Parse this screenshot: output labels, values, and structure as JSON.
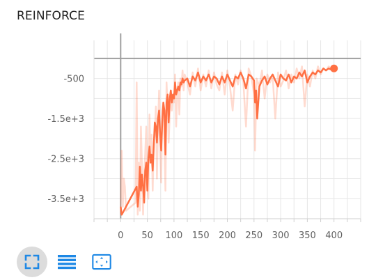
{
  "chart_data": {
    "type": "line",
    "title": "REINFORCE",
    "xlabel": "",
    "ylabel": "",
    "xlim": [
      -50,
      450
    ],
    "ylim": [
      -4000,
      450
    ],
    "x_ticks": [
      0,
      50,
      100,
      150,
      200,
      250,
      300,
      350,
      400
    ],
    "x_tick_labels": [
      "0",
      "50",
      "100",
      "150",
      "200",
      "250",
      "300",
      "350",
      "400"
    ],
    "y_ticks": [
      -500,
      -1500,
      -2500,
      -3500
    ],
    "y_tick_labels": [
      "-500",
      "-1.5e+3",
      "-2.5e+3",
      "-3.5e+3"
    ],
    "reference_lines": {
      "x": 0,
      "y": 0
    },
    "grid": true,
    "colors": {
      "smoothed": "#ff7043",
      "raw": "#ff7043",
      "raw_opacity": 0.25,
      "grid": "#e6e6e6",
      "axis": "#9e9e9e"
    },
    "series": [
      {
        "style": "raw",
        "x": [
          0,
          2,
          4,
          6,
          8,
          10,
          28,
          30,
          32,
          34,
          36,
          38,
          40,
          42,
          44,
          46,
          48,
          50,
          52,
          54,
          56,
          58,
          60,
          62,
          64,
          66,
          68,
          70,
          72,
          74,
          76,
          78,
          80,
          82,
          84,
          86,
          88,
          90,
          92,
          94,
          96,
          98,
          100,
          102,
          104,
          106,
          108,
          110,
          112,
          114,
          116,
          118,
          120,
          125,
          130,
          135,
          140,
          145,
          150,
          155,
          160,
          165,
          170,
          175,
          180,
          185,
          190,
          195,
          200,
          205,
          210,
          215,
          220,
          225,
          230,
          235,
          240,
          245,
          250,
          252,
          255,
          260,
          265,
          270,
          275,
          280,
          285,
          290,
          295,
          300,
          305,
          310,
          315,
          320,
          325,
          330,
          335,
          340,
          345,
          350,
          355,
          360,
          365,
          370,
          375,
          380,
          385,
          390,
          395,
          400
        ],
        "y": [
          -3900,
          -2300,
          -3700,
          -3000,
          -3200,
          -3800,
          -3600,
          -600,
          -3900,
          -2600,
          -3800,
          -1700,
          -2700,
          -3900,
          -2900,
          -2400,
          -1700,
          -3200,
          -3500,
          -1400,
          -2600,
          -1900,
          -3300,
          -2100,
          -1900,
          -1200,
          -3000,
          -1700,
          -800,
          -2200,
          -3100,
          -1300,
          -1100,
          -2000,
          -3300,
          -600,
          -1200,
          -2100,
          -1400,
          -800,
          -1300,
          -1000,
          -1100,
          -400,
          -1700,
          -900,
          -600,
          -1400,
          -500,
          -700,
          -300,
          -800,
          -400,
          -600,
          -900,
          -350,
          -700,
          -250,
          -800,
          -400,
          -700,
          -300,
          -750,
          -350,
          -650,
          -800,
          -350,
          -900,
          -300,
          -700,
          -1300,
          -400,
          -650,
          -300,
          -600,
          -1700,
          -250,
          -450,
          -900,
          -2300,
          -500,
          -700,
          -300,
          -1000,
          -400,
          -600,
          -450,
          -1500,
          -350,
          -700,
          -550,
          -300,
          -750,
          -400,
          -600,
          -250,
          -500,
          -200,
          -1200,
          -400,
          -700,
          -300,
          -500,
          -200,
          -400,
          -250,
          -300,
          -200,
          -250,
          -250
        ]
      },
      {
        "style": "smoothed",
        "x": [
          0,
          2,
          4,
          30,
          32,
          34,
          36,
          38,
          40,
          42,
          44,
          46,
          48,
          50,
          52,
          54,
          56,
          58,
          60,
          62,
          64,
          66,
          68,
          70,
          72,
          74,
          76,
          78,
          80,
          82,
          84,
          86,
          88,
          90,
          92,
          94,
          96,
          98,
          100,
          102,
          104,
          106,
          108,
          110,
          112,
          114,
          116,
          118,
          120,
          125,
          130,
          135,
          140,
          145,
          150,
          155,
          160,
          165,
          170,
          175,
          180,
          185,
          190,
          195,
          200,
          205,
          210,
          215,
          220,
          225,
          230,
          235,
          240,
          245,
          250,
          252,
          254,
          256,
          260,
          265,
          270,
          275,
          280,
          285,
          290,
          295,
          300,
          305,
          310,
          315,
          320,
          325,
          330,
          335,
          340,
          345,
          350,
          355,
          360,
          365,
          370,
          375,
          380,
          385,
          390,
          395,
          400
        ],
        "y": [
          -3700,
          -3900,
          -3850,
          -3200,
          -3700,
          -3400,
          -2700,
          -3300,
          -2900,
          -3200,
          -3600,
          -2800,
          -2600,
          -3300,
          -2500,
          -2200,
          -2600,
          -2400,
          -2800,
          -2200,
          -1600,
          -1700,
          -2100,
          -1500,
          -1300,
          -1900,
          -2300,
          -1600,
          -1100,
          -1300,
          -2400,
          -1100,
          -900,
          -1600,
          -1000,
          -800,
          -1100,
          -900,
          -1000,
          -600,
          -900,
          -800,
          -700,
          -800,
          -600,
          -650,
          -500,
          -600,
          -550,
          -500,
          -700,
          -450,
          -550,
          -350,
          -600,
          -450,
          -550,
          -400,
          -600,
          -450,
          -500,
          -650,
          -450,
          -600,
          -400,
          -550,
          -700,
          -450,
          -500,
          -350,
          -500,
          -750,
          -400,
          -450,
          -550,
          -1100,
          -800,
          -1500,
          -700,
          -550,
          -450,
          -650,
          -500,
          -400,
          -550,
          -700,
          -400,
          -500,
          -550,
          -400,
          -600,
          -450,
          -500,
          -350,
          -450,
          -300,
          -600,
          -450,
          -350,
          -400,
          -300,
          -350,
          -250,
          -300,
          -250,
          -280,
          -250
        ]
      }
    ]
  },
  "toolbar": {
    "expand_icon": "fullscreen-icon",
    "data_icon": "list-icon",
    "fit_icon": "fit-domain-icon",
    "accent_color": "#1e88e5"
  }
}
